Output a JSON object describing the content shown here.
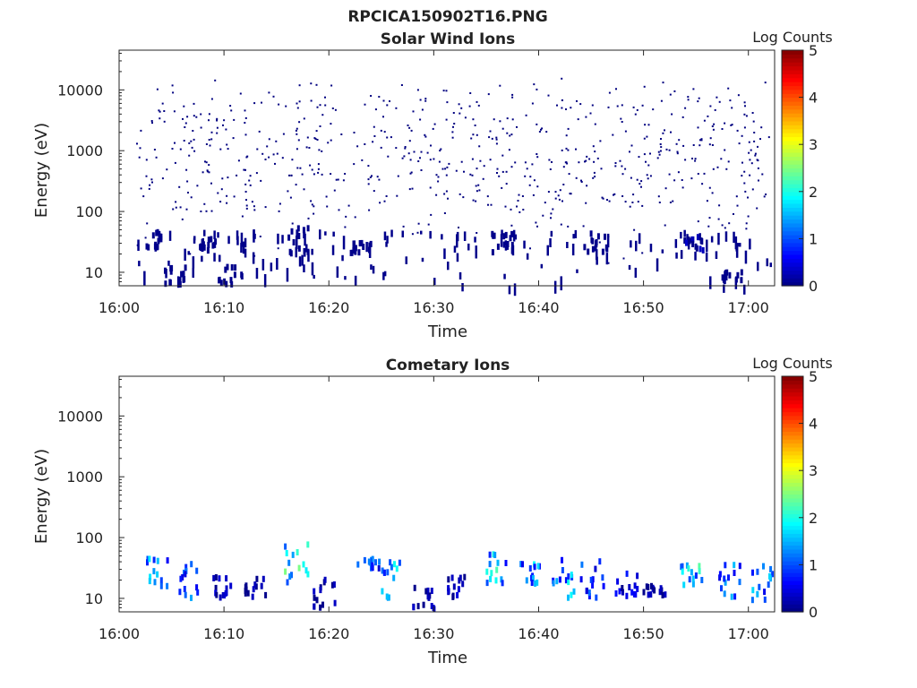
{
  "figure_title": "RPCICA150902T16.PNG",
  "colorbar": {
    "label": "Log Counts",
    "ticks": [
      "0",
      "1",
      "2",
      "3",
      "4",
      "5"
    ],
    "range": [
      0,
      5
    ],
    "colormap": "jet"
  },
  "chart_data": [
    {
      "type": "heatmap",
      "title": "Solar Wind Ions",
      "xlabel": "Time",
      "ylabel": "Energy (eV)",
      "x_ticks": [
        "16:00",
        "16:10",
        "16:20",
        "16:30",
        "16:40",
        "16:50",
        "17:00"
      ],
      "y_ticks": [
        "10",
        "100",
        "1000",
        "10000"
      ],
      "y_scale": "log",
      "ylim": [
        6,
        45000
      ],
      "xlim_minutes": [
        0,
        62.5
      ],
      "clusters": [
        {
          "t": 3.5,
          "e": [
            20,
            45
          ],
          "v": 0.1
        },
        {
          "t": 5.3,
          "e": [
            6,
            12
          ],
          "v": 0.1
        },
        {
          "t": 8.5,
          "e": [
            20,
            35
          ],
          "v": 0.1
        },
        {
          "t": 10.5,
          "e": [
            6,
            12
          ],
          "v": 0.1
        },
        {
          "t": 16.8,
          "e": [
            20,
            60
          ],
          "v": 0.1
        },
        {
          "t": 22.8,
          "e": [
            20,
            30
          ],
          "v": 0.1
        },
        {
          "t": 36.5,
          "e": [
            20,
            45
          ],
          "v": 0.1
        },
        {
          "t": 45.3,
          "e": [
            20,
            45
          ],
          "v": 0.1
        },
        {
          "t": 54.5,
          "e": [
            22,
            40
          ],
          "v": 0.3
        },
        {
          "t": 58.5,
          "e": [
            6,
            10
          ],
          "v": 0.1
        }
      ]
    },
    {
      "type": "heatmap",
      "title": "Cometary Ions",
      "xlabel": "Time",
      "ylabel": "Energy (eV)",
      "x_ticks": [
        "16:00",
        "16:10",
        "16:20",
        "16:30",
        "16:40",
        "16:50",
        "17:00"
      ],
      "y_ticks": [
        "10",
        "100",
        "1000",
        "10000"
      ],
      "y_scale": "log",
      "ylim": [
        6,
        45000
      ],
      "xlim_minutes": [
        0,
        62.5
      ],
      "clusters": [
        {
          "t": 3.5,
          "e": [
            15,
            45
          ],
          "v": 1.5
        },
        {
          "t": 6.5,
          "e": [
            10,
            40
          ],
          "v": 1.2
        },
        {
          "t": 9.7,
          "e": [
            10,
            25
          ],
          "v": 0.4
        },
        {
          "t": 12.8,
          "e": [
            10,
            22
          ],
          "v": 0.3
        },
        {
          "t": 16.8,
          "e": [
            18,
            85
          ],
          "v": 2.0
        },
        {
          "t": 19.5,
          "e": [
            6,
            20
          ],
          "v": 0.3
        },
        {
          "t": 23.7,
          "e": [
            30,
            45
          ],
          "v": 1.2
        },
        {
          "t": 25.9,
          "e": [
            10,
            40
          ],
          "v": 1.6
        },
        {
          "t": 29.0,
          "e": [
            6,
            15
          ],
          "v": 0.3
        },
        {
          "t": 32.3,
          "e": [
            10,
            22
          ],
          "v": 0.4
        },
        {
          "t": 35.9,
          "e": [
            15,
            55
          ],
          "v": 1.8
        },
        {
          "t": 39.0,
          "e": [
            15,
            40
          ],
          "v": 1.5
        },
        {
          "t": 42.2,
          "e": [
            10,
            45
          ],
          "v": 1.6
        },
        {
          "t": 45.0,
          "e": [
            10,
            40
          ],
          "v": 1.0
        },
        {
          "t": 48.3,
          "e": [
            10,
            30
          ],
          "v": 0.7
        },
        {
          "t": 51.0,
          "e": [
            10,
            16
          ],
          "v": 0.3
        },
        {
          "t": 54.5,
          "e": [
            15,
            55
          ],
          "v": 1.9
        },
        {
          "t": 58.0,
          "e": [
            10,
            40
          ],
          "v": 1.3
        },
        {
          "t": 61.2,
          "e": [
            8,
            40
          ],
          "v": 1.4
        }
      ]
    }
  ]
}
